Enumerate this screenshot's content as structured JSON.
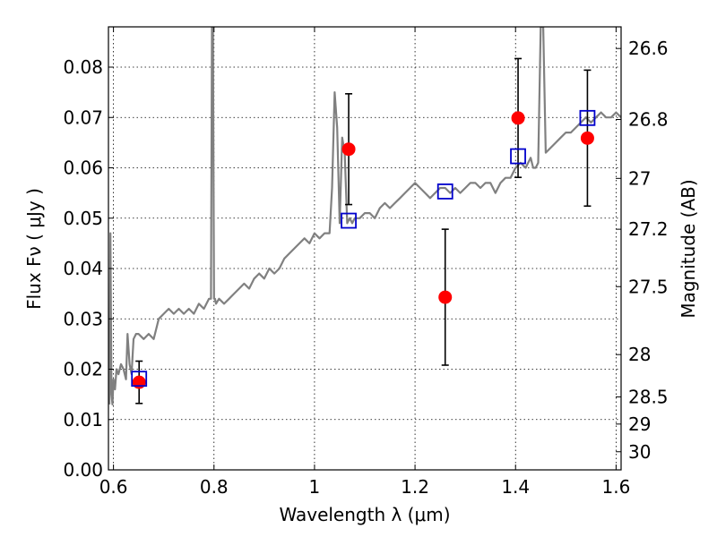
{
  "chart_data": {
    "type": "scatter",
    "xlabel": "Wavelength  λ (μm)",
    "ylabel": "Flux  Fν  ( μJy )",
    "y2label": "Magnitude (AB)",
    "xlim": [
      0.59,
      1.61
    ],
    "ylim": [
      0.0,
      0.088
    ],
    "grid": true,
    "x_ticks": [
      0.6,
      0.8,
      1.0,
      1.2,
      1.4,
      1.6
    ],
    "x_tick_labels": [
      "0.6",
      "0.8",
      "1",
      "1.2",
      "1.4",
      "1.6"
    ],
    "y_ticks": [
      0.0,
      0.01,
      0.02,
      0.03,
      0.04,
      0.05,
      0.06,
      0.07,
      0.08
    ],
    "y_tick_labels": [
      "0.00",
      "0.01",
      "0.02",
      "0.03",
      "0.04",
      "0.05",
      "0.06",
      "0.07",
      "0.08"
    ],
    "right_ticks": [
      {
        "label": "26.6",
        "flux": 0.0837
      },
      {
        "label": "26.8",
        "flux": 0.0696
      },
      {
        "label": "27",
        "flux": 0.0579
      },
      {
        "label": "27.2",
        "flux": 0.0478
      },
      {
        "label": "27.5",
        "flux": 0.0364
      },
      {
        "label": "28",
        "flux": 0.0229
      },
      {
        "label": "28.5",
        "flux": 0.0145
      },
      {
        "label": "29",
        "flux": 0.0091
      },
      {
        "label": "30",
        "flux": 0.0036
      }
    ],
    "series": [
      {
        "kind": "line",
        "color": "#808080",
        "x": [
          0.592,
          0.594,
          0.596,
          0.598,
          0.6,
          0.603,
          0.606,
          0.61,
          0.615,
          0.62,
          0.625,
          0.628,
          0.632,
          0.636,
          0.64,
          0.645,
          0.65,
          0.66,
          0.67,
          0.68,
          0.69,
          0.7,
          0.71,
          0.72,
          0.73,
          0.74,
          0.75,
          0.76,
          0.77,
          0.78,
          0.79,
          0.794,
          0.796,
          0.798,
          0.8,
          0.802,
          0.804,
          0.81,
          0.82,
          0.83,
          0.84,
          0.85,
          0.86,
          0.87,
          0.88,
          0.89,
          0.9,
          0.91,
          0.92,
          0.93,
          0.94,
          0.95,
          0.96,
          0.97,
          0.98,
          0.99,
          1.0,
          1.01,
          1.02,
          1.03,
          1.035,
          1.04,
          1.045,
          1.05,
          1.055,
          1.06,
          1.065,
          1.07,
          1.075,
          1.08,
          1.09,
          1.1,
          1.11,
          1.12,
          1.13,
          1.14,
          1.15,
          1.16,
          1.17,
          1.18,
          1.19,
          1.2,
          1.21,
          1.22,
          1.23,
          1.24,
          1.25,
          1.26,
          1.27,
          1.28,
          1.29,
          1.3,
          1.31,
          1.32,
          1.33,
          1.34,
          1.35,
          1.36,
          1.37,
          1.38,
          1.39,
          1.4,
          1.41,
          1.42,
          1.43,
          1.435,
          1.44,
          1.445,
          1.45,
          1.455,
          1.46,
          1.47,
          1.48,
          1.49,
          1.5,
          1.51,
          1.52,
          1.53,
          1.54,
          1.55,
          1.56,
          1.57,
          1.58,
          1.59,
          1.6,
          1.61
        ],
        "y": [
          0.013,
          0.047,
          0.015,
          0.013,
          0.018,
          0.016,
          0.02,
          0.019,
          0.021,
          0.02,
          0.018,
          0.027,
          0.021,
          0.019,
          0.026,
          0.027,
          0.027,
          0.026,
          0.027,
          0.026,
          0.03,
          0.031,
          0.032,
          0.031,
          0.032,
          0.031,
          0.032,
          0.031,
          0.033,
          0.032,
          0.034,
          0.034,
          0.088,
          0.088,
          0.034,
          0.034,
          0.033,
          0.034,
          0.033,
          0.034,
          0.035,
          0.036,
          0.037,
          0.036,
          0.038,
          0.039,
          0.038,
          0.04,
          0.039,
          0.04,
          0.042,
          0.043,
          0.044,
          0.045,
          0.046,
          0.045,
          0.047,
          0.046,
          0.047,
          0.047,
          0.056,
          0.075,
          0.068,
          0.049,
          0.066,
          0.063,
          0.049,
          0.05,
          0.049,
          0.05,
          0.05,
          0.051,
          0.051,
          0.05,
          0.052,
          0.053,
          0.052,
          0.053,
          0.054,
          0.055,
          0.056,
          0.057,
          0.056,
          0.055,
          0.054,
          0.055,
          0.056,
          0.056,
          0.055,
          0.056,
          0.055,
          0.056,
          0.057,
          0.057,
          0.056,
          0.057,
          0.057,
          0.055,
          0.057,
          0.058,
          0.058,
          0.06,
          0.061,
          0.06,
          0.062,
          0.06,
          0.06,
          0.061,
          0.088,
          0.088,
          0.063,
          0.064,
          0.065,
          0.066,
          0.067,
          0.067,
          0.068,
          0.069,
          0.07,
          0.069,
          0.07,
          0.071,
          0.07,
          0.07,
          0.071,
          0.07
        ]
      },
      {
        "kind": "points",
        "marker": "circle",
        "color": "#ff0000",
        "x": [
          0.651,
          1.068,
          1.26,
          1.405,
          1.543
        ],
        "y": [
          0.0174,
          0.0637,
          0.0343,
          0.0699,
          0.0659
        ],
        "yerr": [
          0.0042,
          0.011,
          0.0135,
          0.0118,
          0.0135
        ]
      },
      {
        "kind": "points",
        "marker": "square-open",
        "color": "#0000cc",
        "x": [
          0.651,
          1.068,
          1.26,
          1.405,
          1.543
        ],
        "y": [
          0.0181,
          0.0495,
          0.0553,
          0.0623,
          0.0699
        ]
      }
    ]
  }
}
